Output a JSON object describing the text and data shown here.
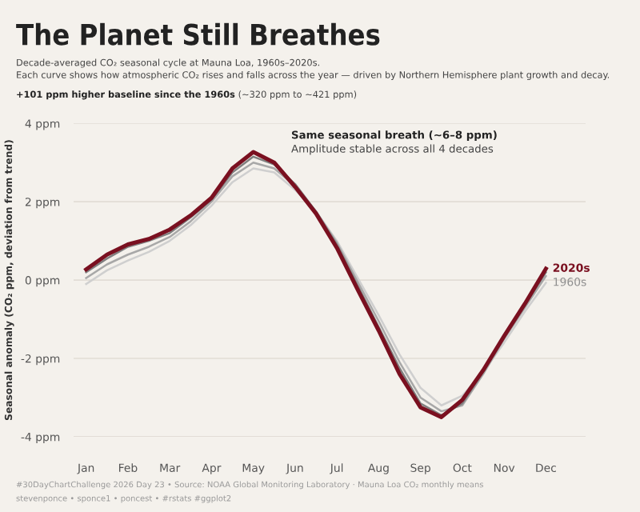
{
  "chart_data": {
    "type": "line",
    "title": "The Planet Still Breathes",
    "subtitle": "Decade-averaged CO₂ seasonal cycle at Mauna Loa, 1960s–2020s.\nEach curve shows how atmospheric CO₂ rises and falls across the year — driven by Northern Hemisphere plant growth and decay.",
    "ylabel": "Seasonal anomaly (CO₂ ppm, deviation from trend)",
    "categories": [
      "Jan",
      null,
      "Feb",
      null,
      "Mar",
      null,
      "Apr",
      null,
      "May",
      null,
      "Jun",
      null,
      "Jul",
      null,
      "Aug",
      null,
      "Sep",
      null,
      "Oct",
      null,
      "Nov",
      null,
      "Dec"
    ],
    "series": [
      {
        "name": "1960s",
        "color": "#cfcfcf",
        "values": [
          -0.1,
          0.25,
          0.5,
          0.72,
          1.0,
          1.4,
          1.9,
          2.5,
          2.85,
          2.75,
          2.3,
          1.75,
          1.0,
          0.05,
          -0.9,
          -1.9,
          -2.75,
          -3.2,
          -2.95,
          -2.35,
          -1.6,
          -0.8,
          -0.07
        ]
      },
      {
        "color": "#a8a8a8",
        "values": [
          0.05,
          0.4,
          0.65,
          0.85,
          1.1,
          1.5,
          2.0,
          2.65,
          3.0,
          2.85,
          2.4,
          1.75,
          0.95,
          -0.05,
          -1.05,
          -2.1,
          -3.0,
          -3.35,
          -3.2,
          -2.4,
          -1.5,
          -0.7,
          0.1
        ]
      },
      {
        "color": "#808080",
        "values": [
          0.2,
          0.55,
          0.85,
          1.0,
          1.2,
          1.6,
          2.05,
          2.75,
          3.15,
          2.95,
          2.45,
          1.75,
          0.9,
          -0.15,
          -1.2,
          -2.25,
          -3.15,
          -3.45,
          -3.15,
          -2.35,
          -1.45,
          -0.65,
          0.2
        ]
      },
      {
        "name": "2020s",
        "color": "#7a1020",
        "values": [
          0.27,
          0.65,
          0.91,
          1.05,
          1.29,
          1.65,
          2.1,
          2.85,
          3.27,
          3.0,
          2.38,
          1.7,
          0.82,
          -0.25,
          -1.29,
          -2.4,
          -3.25,
          -3.5,
          -3.06,
          -2.3,
          -1.43,
          -0.6,
          0.29
        ]
      }
    ],
    "ylim": [
      -4,
      4
    ],
    "yticks": [
      {
        "value": -4,
        "label": "-4 ppm"
      },
      {
        "value": -2,
        "label": "-2 ppm"
      },
      {
        "value": 0,
        "label": "0 ppm"
      },
      {
        "value": 2,
        "label": "2 ppm"
      },
      {
        "value": 4,
        "label": "4 ppm"
      }
    ],
    "grid": "y",
    "legend": false,
    "marker": "none",
    "line_style": "solid",
    "annotations": [
      "+101 ppm higher baseline since the 1960s",
      " (~320 ppm to ~421 ppm)",
      "Same seasonal breath (~6–8 ppm)",
      "Amplitude stable across all 4 decades",
      "#30DayChartChallenge 2026 Day 23 • Source: NOAA Global Monitoring Laboratory · Mauna Loa CO₂ monthly means",
      "stevenponce • sponce1 • poncest • #rstats #ggplot2"
    ]
  }
}
